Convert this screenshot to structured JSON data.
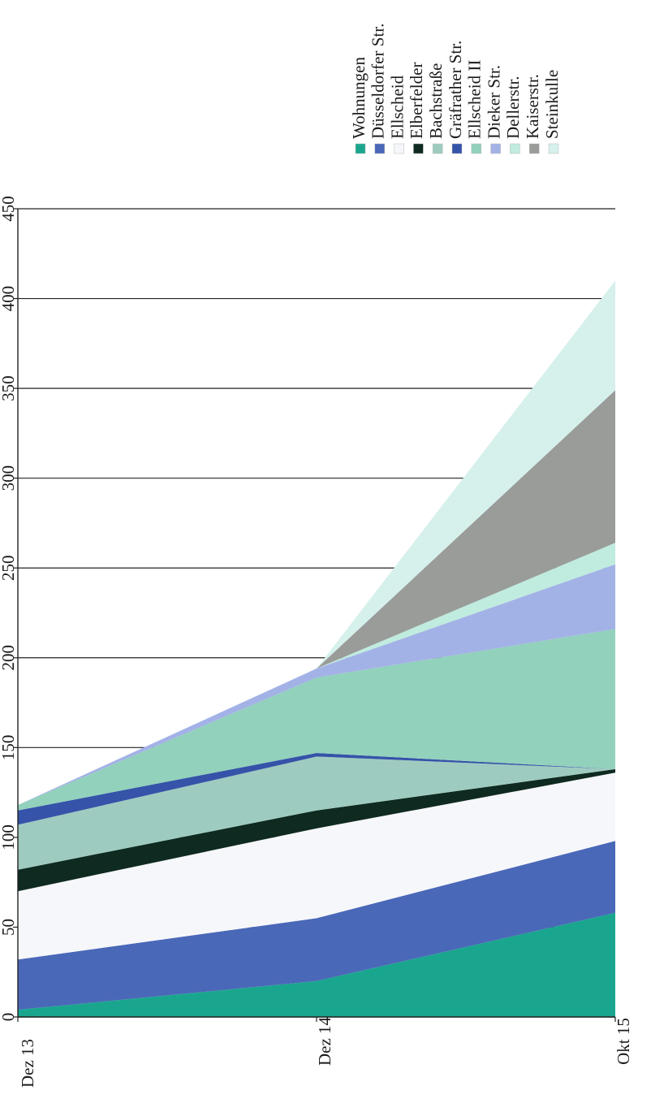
{
  "chart_data": {
    "type": "area",
    "stacked": true,
    "orientation": "rotated-90-ccw",
    "x": [
      "Dez 13",
      "Dez 14",
      "Okt 15"
    ],
    "ylim": [
      0,
      450
    ],
    "yticks": [
      0,
      50,
      100,
      150,
      200,
      250,
      300,
      350,
      400,
      450
    ],
    "grid": true,
    "legend_position": "right",
    "series": [
      {
        "name": "Wohnungen",
        "color": "#1aa68e",
        "values": [
          4,
          20,
          58
        ]
      },
      {
        "name": "Düsseldorfer Str.",
        "color": "#4a68b8",
        "values": [
          28,
          35,
          40
        ]
      },
      {
        "name": "Ellscheid",
        "color": "#f6f7fa",
        "values": [
          38,
          50,
          38
        ]
      },
      {
        "name": "Elberfelder",
        "color": "#0f2a20",
        "values": [
          12,
          10,
          2
        ]
      },
      {
        "name": "Bachstraße",
        "color": "#9ecbbf",
        "values": [
          25,
          30,
          0
        ]
      },
      {
        "name": "Gräfrather Str.",
        "color": "#3553a8",
        "values": [
          8,
          2,
          0
        ]
      },
      {
        "name": "Ellscheid II",
        "color": "#92d1bc",
        "values": [
          3,
          42,
          78
        ]
      },
      {
        "name": "Dieker Str.",
        "color": "#a3b2e6",
        "values": [
          0,
          5,
          36
        ]
      },
      {
        "name": "Dellerstr.",
        "color": "#c0ebdf",
        "values": [
          0,
          0,
          12
        ]
      },
      {
        "name": "Kaiserstr.",
        "color": "#999c99",
        "values": [
          0,
          0,
          85
        ]
      },
      {
        "name": "Steinkulle",
        "color": "#d6f0ec",
        "values": [
          0,
          0,
          61
        ]
      }
    ]
  }
}
